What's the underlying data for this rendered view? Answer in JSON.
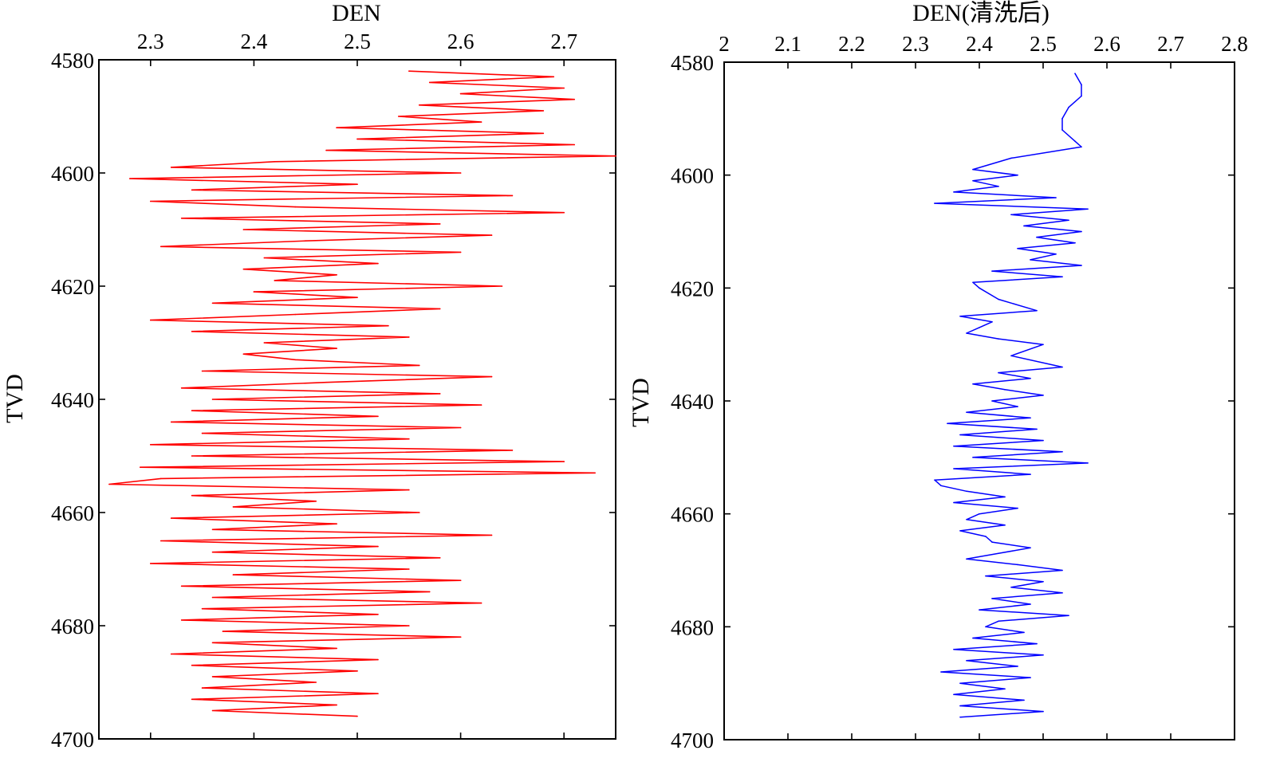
{
  "chart_data": [
    {
      "type": "line",
      "title": "DEN",
      "xlabel": "DEN",
      "ylabel": "TVD",
      "x_axis_position": "top",
      "y_inverted": true,
      "xlim": [
        2.25,
        2.75
      ],
      "ylim": [
        4580,
        4700
      ],
      "xticks": [
        2.3,
        2.4,
        2.5,
        2.6,
        2.7
      ],
      "xtick_labels": [
        "2.3",
        "2.4",
        "2.5",
        "2.6",
        "2.7"
      ],
      "yticks": [
        4580,
        4600,
        4620,
        4640,
        4660,
        4680,
        4700
      ],
      "ytick_labels": [
        "4580",
        "4600",
        "4620",
        "4640",
        "4660",
        "4680",
        "4700"
      ],
      "grid": false,
      "color": "#ff0000",
      "series": [
        {
          "y": [
            4582,
            4583,
            4584,
            4585,
            4586,
            4587,
            4588,
            4589,
            4590,
            4591,
            4592,
            4593,
            4594,
            4595,
            4596,
            4597,
            4598,
            4599,
            4600,
            4601,
            4602,
            4603,
            4604,
            4605,
            4606,
            4607,
            4608,
            4609,
            4610,
            4611,
            4612,
            4613,
            4614,
            4615,
            4616,
            4617,
            4618,
            4619,
            4620,
            4621,
            4622,
            4623,
            4624,
            4625,
            4626,
            4627,
            4628,
            4629,
            4630,
            4631,
            4632,
            4633,
            4634,
            4635,
            4636,
            4637,
            4638,
            4639,
            4640,
            4641,
            4642,
            4643,
            4644,
            4645,
            4646,
            4647,
            4648,
            4649,
            4650,
            4651,
            4652,
            4653,
            4654,
            4655,
            4656,
            4657,
            4658,
            4659,
            4660,
            4661,
            4662,
            4663,
            4664,
            4665,
            4666,
            4667,
            4668,
            4669,
            4670,
            4671,
            4672,
            4673,
            4674,
            4675,
            4676,
            4677,
            4678,
            4679,
            4680,
            4681,
            4682,
            4683,
            4684,
            4685,
            4686,
            4687,
            4688,
            4689,
            4690,
            4691,
            4692,
            4693,
            4694,
            4695,
            4696
          ],
          "x": [
            2.55,
            2.69,
            2.57,
            2.7,
            2.6,
            2.71,
            2.56,
            2.68,
            2.54,
            2.62,
            2.48,
            2.68,
            2.5,
            2.71,
            2.47,
            2.75,
            2.42,
            2.32,
            2.6,
            2.28,
            2.5,
            2.34,
            2.65,
            2.3,
            2.44,
            2.7,
            2.33,
            2.58,
            2.39,
            2.63,
            2.45,
            2.31,
            2.6,
            2.41,
            2.52,
            2.39,
            2.48,
            2.42,
            2.64,
            2.4,
            2.5,
            2.36,
            2.58,
            2.44,
            2.3,
            2.53,
            2.34,
            2.55,
            2.41,
            2.48,
            2.39,
            2.44,
            2.56,
            2.35,
            2.63,
            2.47,
            2.33,
            2.58,
            2.36,
            2.62,
            2.34,
            2.52,
            2.32,
            2.6,
            2.35,
            2.55,
            2.3,
            2.65,
            2.34,
            2.7,
            2.29,
            2.73,
            2.31,
            2.26,
            2.55,
            2.34,
            2.46,
            2.38,
            2.56,
            2.32,
            2.48,
            2.36,
            2.63,
            2.31,
            2.52,
            2.36,
            2.58,
            2.3,
            2.55,
            2.38,
            2.6,
            2.33,
            2.57,
            2.36,
            2.62,
            2.35,
            2.52,
            2.33,
            2.55,
            2.37,
            2.6,
            2.36,
            2.48,
            2.32,
            2.52,
            2.34,
            2.5,
            2.36,
            2.46,
            2.35,
            2.52,
            2.34,
            2.48,
            2.36,
            2.5
          ]
        }
      ]
    },
    {
      "type": "line",
      "title": "DEN(清洗后)",
      "xlabel": "DEN(清洗后)",
      "ylabel": "TVD",
      "x_axis_position": "top",
      "y_inverted": true,
      "xlim": [
        2.0,
        2.8
      ],
      "ylim": [
        4580,
        4700
      ],
      "xticks": [
        2.0,
        2.1,
        2.2,
        2.3,
        2.4,
        2.5,
        2.6,
        2.7,
        2.8
      ],
      "xtick_labels": [
        "2",
        "2.1",
        "2.2",
        "2.3",
        "2.4",
        "2.5",
        "2.6",
        "2.7",
        "2.8"
      ],
      "yticks": [
        4580,
        4600,
        4620,
        4640,
        4660,
        4680,
        4700
      ],
      "ytick_labels": [
        "4580",
        "4600",
        "4620",
        "4640",
        "4660",
        "4680",
        "4700"
      ],
      "grid": false,
      "color": "#0000ff",
      "series": [
        {
          "y": [
            4582,
            4584,
            4586,
            4588,
            4590,
            4592,
            4594,
            4595,
            4597,
            4599,
            4600,
            4601,
            4602,
            4603,
            4604,
            4605,
            4606,
            4607,
            4608,
            4609,
            4610,
            4611,
            4612,
            4613,
            4614,
            4615,
            4616,
            4617,
            4618,
            4619,
            4620,
            4622,
            4624,
            4625,
            4626,
            4627,
            4628,
            4629,
            4630,
            4632,
            4634,
            4635,
            4636,
            4637,
            4638,
            4639,
            4640,
            4641,
            4642,
            4643,
            4644,
            4645,
            4646,
            4647,
            4648,
            4649,
            4650,
            4651,
            4652,
            4653,
            4654,
            4655,
            4656,
            4657,
            4658,
            4659,
            4660,
            4661,
            4662,
            4663,
            4664,
            4665,
            4666,
            4667,
            4668,
            4669,
            4670,
            4671,
            4672,
            4673,
            4674,
            4675,
            4676,
            4677,
            4678,
            4679,
            4680,
            4681,
            4682,
            4683,
            4684,
            4685,
            4686,
            4687,
            4688,
            4689,
            4690,
            4691,
            4692,
            4693,
            4694,
            4695,
            4696
          ],
          "x": [
            2.55,
            2.56,
            2.56,
            2.54,
            2.53,
            2.53,
            2.55,
            2.56,
            2.45,
            2.39,
            2.46,
            2.39,
            2.43,
            2.36,
            2.52,
            2.33,
            2.57,
            2.45,
            2.54,
            2.47,
            2.56,
            2.49,
            2.55,
            2.46,
            2.52,
            2.48,
            2.56,
            2.42,
            2.53,
            2.39,
            2.4,
            2.43,
            2.49,
            2.37,
            2.42,
            2.4,
            2.38,
            2.43,
            2.5,
            2.45,
            2.53,
            2.43,
            2.48,
            2.39,
            2.44,
            2.5,
            2.42,
            2.46,
            2.38,
            2.48,
            2.35,
            2.49,
            2.37,
            2.5,
            2.36,
            2.53,
            2.39,
            2.57,
            2.36,
            2.48,
            2.33,
            2.34,
            2.38,
            2.44,
            2.36,
            2.46,
            2.4,
            2.38,
            2.44,
            2.37,
            2.41,
            2.42,
            2.48,
            2.43,
            2.38,
            2.46,
            2.53,
            2.41,
            2.5,
            2.45,
            2.53,
            2.42,
            2.48,
            2.4,
            2.54,
            2.43,
            2.41,
            2.47,
            2.39,
            2.49,
            2.36,
            2.5,
            2.38,
            2.46,
            2.34,
            2.48,
            2.37,
            2.44,
            2.36,
            2.47,
            2.37,
            2.5,
            2.37
          ]
        }
      ]
    }
  ]
}
